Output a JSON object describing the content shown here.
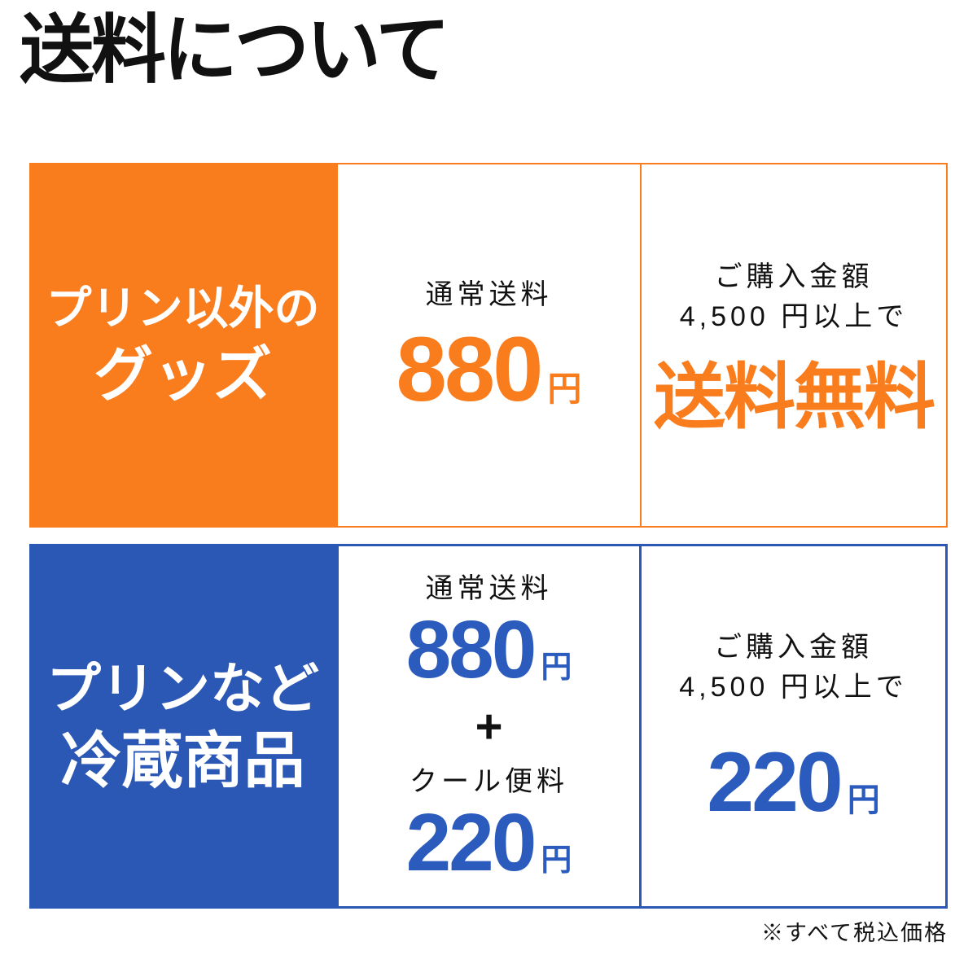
{
  "page": {
    "title": "送料について",
    "footnote": "※すべて税込価格"
  },
  "colors": {
    "orange": "#F97C1D",
    "blue": "#2B57B5",
    "num-blue": "#2C5BBE",
    "ink": "#111111"
  },
  "rows": [
    {
      "label_line1": "プリン以外の",
      "label_line2": "グッズ",
      "shipping": {
        "header": "通常送料",
        "price": "880",
        "unit": "円"
      },
      "condition": {
        "line1": "ご購入金額",
        "line2": "4,500 円以上で",
        "result": "送料無料"
      }
    },
    {
      "label_line1": "プリンなど",
      "label_line2": "冷蔵商品",
      "shipping": {
        "header": "通常送料",
        "price": "880",
        "unit": "円",
        "plus": "+",
        "header2": "クール便料",
        "price2": "220",
        "unit2": "円"
      },
      "condition": {
        "line1": "ご購入金額",
        "line2": "4,500 円以上で",
        "result_price": "220",
        "result_unit": "円"
      }
    }
  ]
}
